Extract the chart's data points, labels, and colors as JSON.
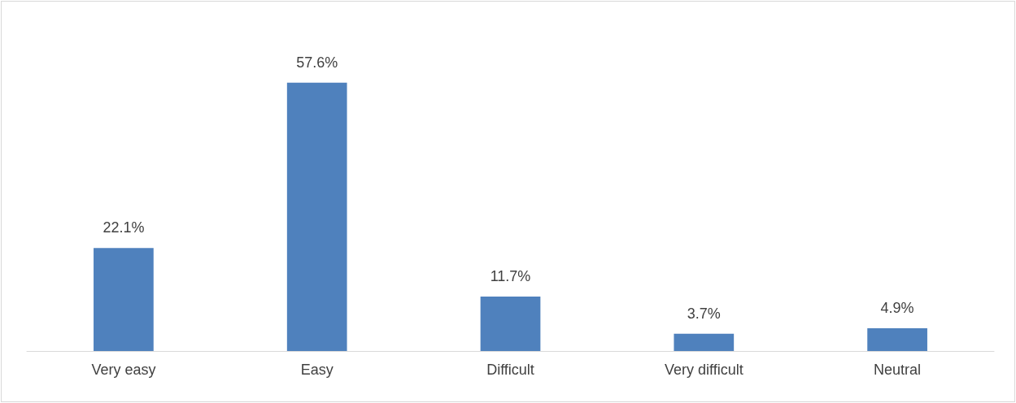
{
  "chart_data": {
    "type": "bar",
    "categories": [
      "Very easy",
      "Easy",
      "Difficult",
      "Very difficult",
      "Neutral"
    ],
    "values": [
      22.1,
      57.6,
      11.7,
      3.7,
      4.9
    ],
    "value_labels": [
      "22.1%",
      "57.6%",
      "11.7%",
      "3.7%",
      "4.9%"
    ],
    "color": "#4f81bd"
  }
}
